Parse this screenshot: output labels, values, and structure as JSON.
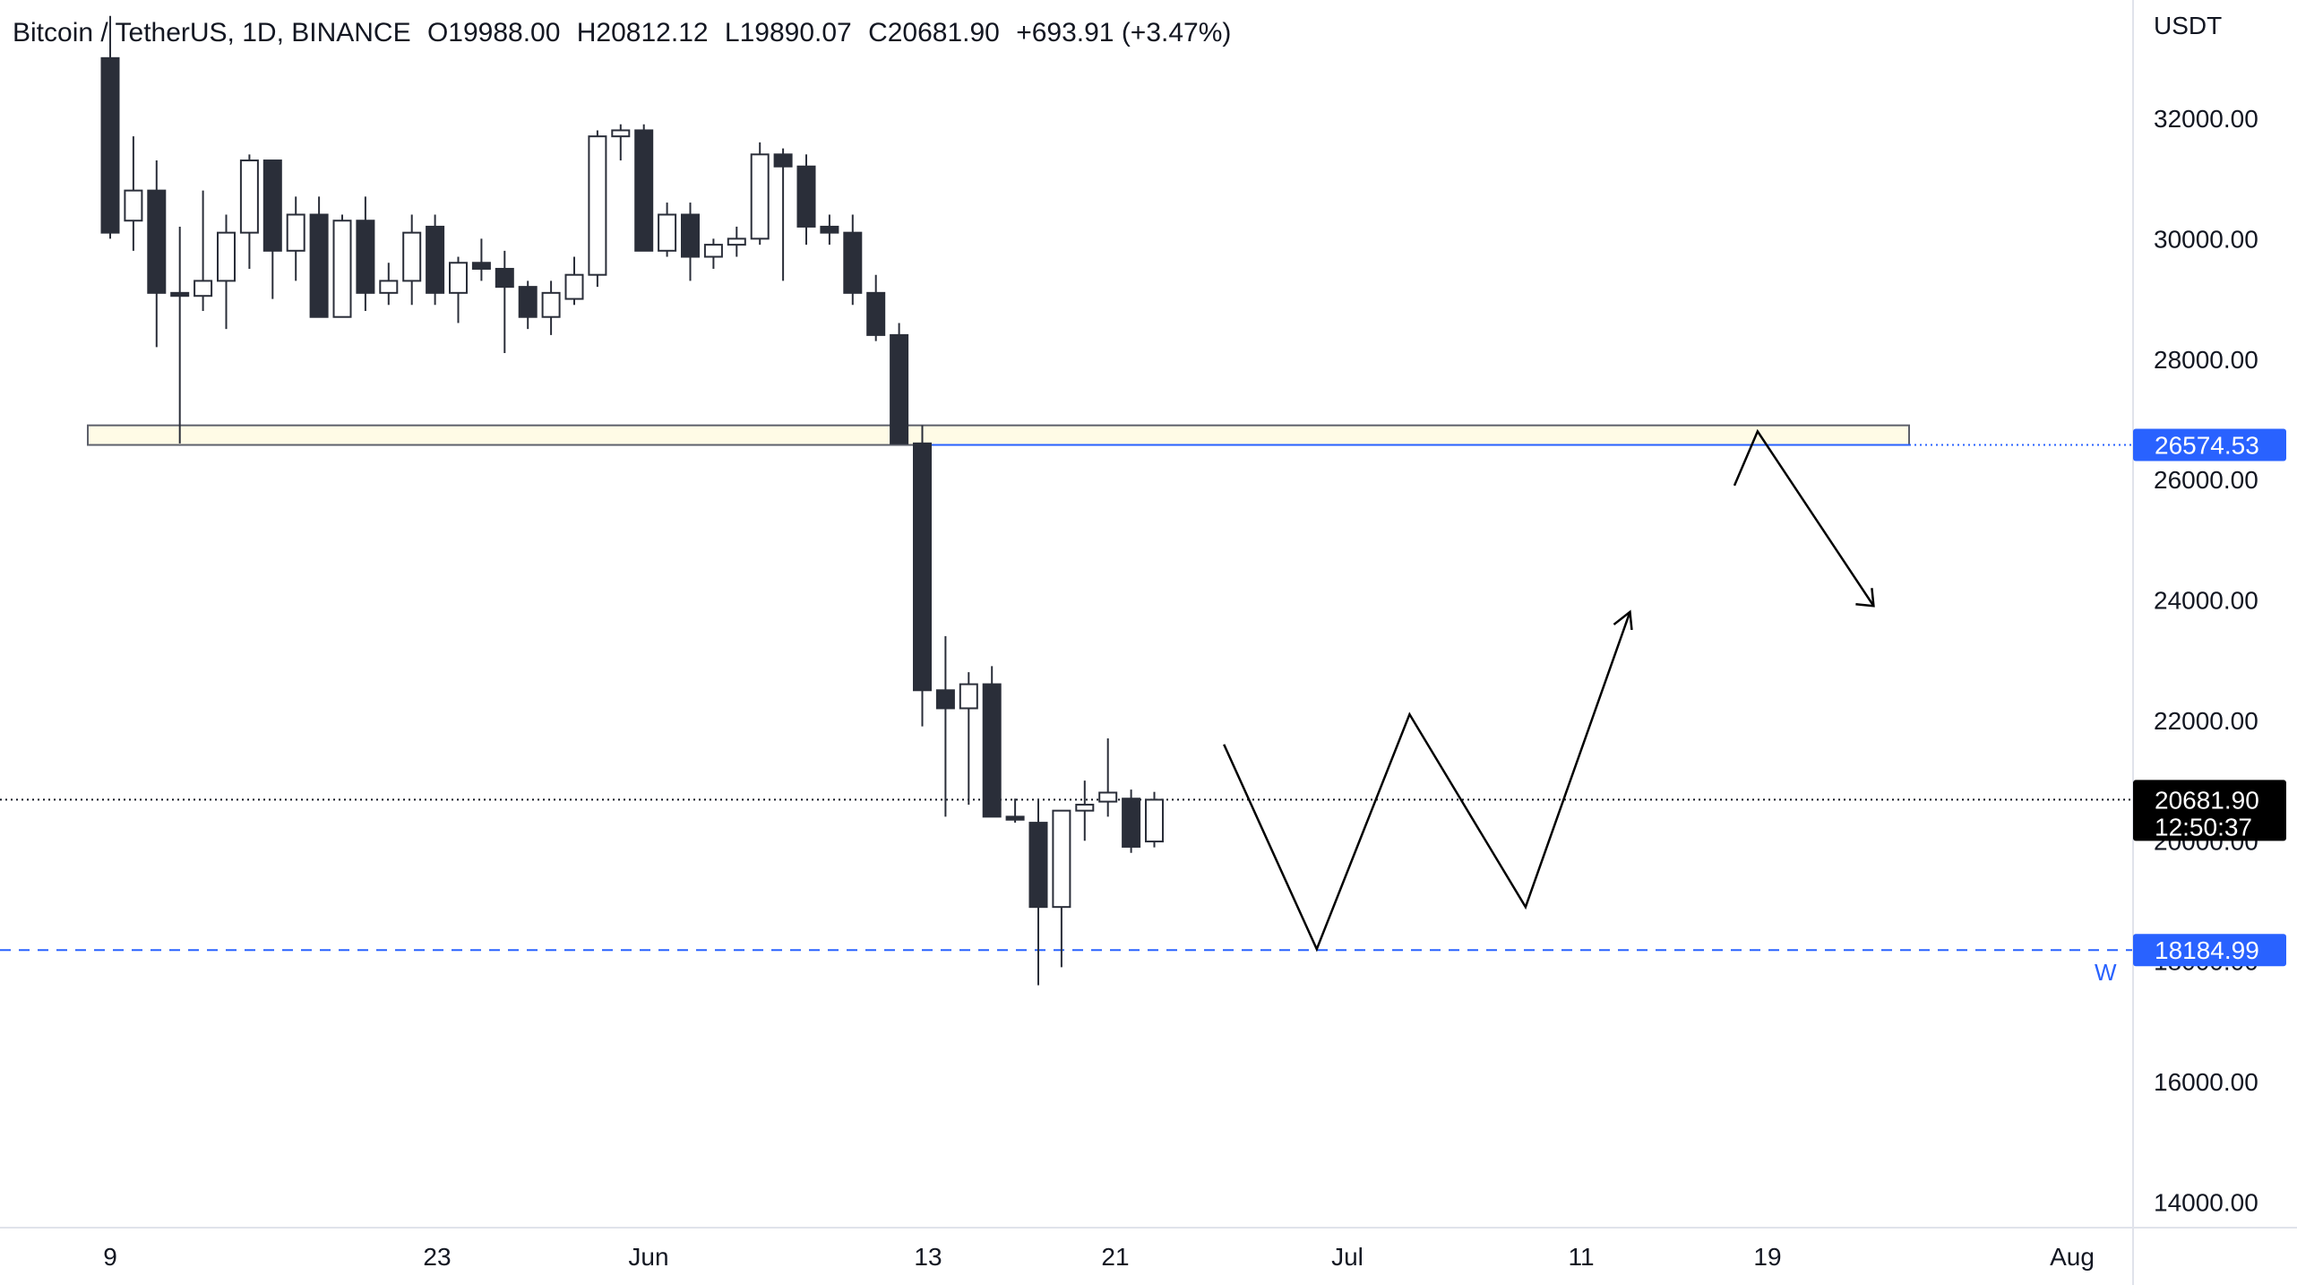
{
  "legend": {
    "symbol": "Bitcoin / TetherUS, 1D, BINANCE",
    "open": "O19988.00",
    "high": "H20812.12",
    "low": "L19890.07",
    "close": "C20681.90",
    "change": "+693.91 (+3.47%)"
  },
  "axis": {
    "unit_label": "USDT",
    "y_ticks": [
      "14000.00",
      "16000.00",
      "18000.00",
      "20000.00",
      "22000.00",
      "24000.00",
      "26000.00",
      "28000.00",
      "30000.00",
      "32000.00"
    ],
    "x_ticks": [
      "9",
      "23",
      "Jun",
      "13",
      "21",
      "Jul",
      "11",
      "19",
      "Aug"
    ]
  },
  "tags": {
    "resistance": "26574.53",
    "last_price": "20681.90",
    "countdown": "12:50:37",
    "support": "18184.99",
    "support_marker": "W"
  },
  "colors": {
    "down_candle": "#2a2e39",
    "up_candle_fill": "#ffffff",
    "accent_blue": "#2962ff",
    "zone_fill": "#fffbe6",
    "zone_border": "#5d606b",
    "last_price_bg": "#000000"
  },
  "chart_data": {
    "type": "candlestick",
    "interval": "1D",
    "ylim": [
      13500,
      33500
    ],
    "candles": [
      {
        "o": 33000,
        "h": 33700,
        "l": 30000,
        "c": 30100,
        "d": "down"
      },
      {
        "o": 30300,
        "h": 31700,
        "l": 29800,
        "c": 30800,
        "d": "up"
      },
      {
        "o": 30800,
        "h": 31300,
        "l": 28200,
        "c": 29100,
        "d": "down"
      },
      {
        "o": 29050,
        "h": 30200,
        "l": 26600,
        "c": 29100,
        "d": "down"
      },
      {
        "o": 29050,
        "h": 30800,
        "l": 28800,
        "c": 29300,
        "d": "up"
      },
      {
        "o": 29300,
        "h": 30400,
        "l": 28500,
        "c": 30100,
        "d": "up"
      },
      {
        "o": 30100,
        "h": 31400,
        "l": 29500,
        "c": 31300,
        "d": "up"
      },
      {
        "o": 31300,
        "h": 31300,
        "l": 29000,
        "c": 29800,
        "d": "down"
      },
      {
        "o": 29800,
        "h": 30700,
        "l": 29300,
        "c": 30400,
        "d": "up"
      },
      {
        "o": 30400,
        "h": 30700,
        "l": 28700,
        "c": 28700,
        "d": "down"
      },
      {
        "o": 28700,
        "h": 30400,
        "l": 28700,
        "c": 30300,
        "d": "up"
      },
      {
        "o": 30300,
        "h": 30700,
        "l": 28800,
        "c": 29100,
        "d": "down"
      },
      {
        "o": 29100,
        "h": 29600,
        "l": 28900,
        "c": 29300,
        "d": "up"
      },
      {
        "o": 29300,
        "h": 30400,
        "l": 28900,
        "c": 30100,
        "d": "up"
      },
      {
        "o": 30200,
        "h": 30400,
        "l": 28900,
        "c": 29100,
        "d": "down"
      },
      {
        "o": 29100,
        "h": 29700,
        "l": 28600,
        "c": 29600,
        "d": "up"
      },
      {
        "o": 29600,
        "h": 30000,
        "l": 29300,
        "c": 29500,
        "d": "down"
      },
      {
        "o": 29500,
        "h": 29800,
        "l": 28100,
        "c": 29200,
        "d": "down"
      },
      {
        "o": 29200,
        "h": 29300,
        "l": 28500,
        "c": 28700,
        "d": "down"
      },
      {
        "o": 28700,
        "h": 29300,
        "l": 28400,
        "c": 29100,
        "d": "up"
      },
      {
        "o": 29000,
        "h": 29700,
        "l": 28900,
        "c": 29400,
        "d": "up"
      },
      {
        "o": 29400,
        "h": 31800,
        "l": 29200,
        "c": 31700,
        "d": "up"
      },
      {
        "o": 31700,
        "h": 31900,
        "l": 31300,
        "c": 31800,
        "d": "up"
      },
      {
        "o": 31800,
        "h": 31900,
        "l": 29800,
        "c": 29800,
        "d": "down"
      },
      {
        "o": 29800,
        "h": 30600,
        "l": 29700,
        "c": 30400,
        "d": "up"
      },
      {
        "o": 30400,
        "h": 30600,
        "l": 29300,
        "c": 29700,
        "d": "down"
      },
      {
        "o": 29700,
        "h": 30000,
        "l": 29500,
        "c": 29900,
        "d": "up"
      },
      {
        "o": 29900,
        "h": 30200,
        "l": 29700,
        "c": 30000,
        "d": "up"
      },
      {
        "o": 30000,
        "h": 31600,
        "l": 29900,
        "c": 31400,
        "d": "up"
      },
      {
        "o": 31400,
        "h": 31500,
        "l": 29300,
        "c": 31200,
        "d": "down"
      },
      {
        "o": 31200,
        "h": 31400,
        "l": 29900,
        "c": 30200,
        "d": "down"
      },
      {
        "o": 30200,
        "h": 30400,
        "l": 29900,
        "c": 30100,
        "d": "down"
      },
      {
        "o": 30100,
        "h": 30400,
        "l": 28900,
        "c": 29100,
        "d": "down"
      },
      {
        "o": 29100,
        "h": 29400,
        "l": 28300,
        "c": 28400,
        "d": "down"
      },
      {
        "o": 28400,
        "h": 28600,
        "l": 26600,
        "c": 26600,
        "d": "down"
      },
      {
        "o": 26600,
        "h": 26900,
        "l": 21900,
        "c": 22500,
        "d": "down"
      },
      {
        "o": 22500,
        "h": 23400,
        "l": 20400,
        "c": 22200,
        "d": "down"
      },
      {
        "o": 22200,
        "h": 22800,
        "l": 20600,
        "c": 22600,
        "d": "up"
      },
      {
        "o": 22600,
        "h": 22900,
        "l": 20500,
        "c": 20400,
        "d": "down"
      },
      {
        "o": 20400,
        "h": 20700,
        "l": 20300,
        "c": 20350,
        "d": "down"
      },
      {
        "o": 20300,
        "h": 20700,
        "l": 17600,
        "c": 18900,
        "d": "down"
      },
      {
        "o": 18900,
        "h": 20500,
        "l": 17900,
        "c": 20500,
        "d": "up"
      },
      {
        "o": 20500,
        "h": 21000,
        "l": 20000,
        "c": 20600,
        "d": "up"
      },
      {
        "o": 20650,
        "h": 21700,
        "l": 20400,
        "c": 20800,
        "d": "up"
      },
      {
        "o": 20700,
        "h": 20850,
        "l": 19800,
        "c": 19900,
        "d": "down"
      },
      {
        "o": 19988,
        "h": 20812.12,
        "l": 19890.07,
        "c": 20681.9,
        "d": "up"
      }
    ],
    "levels": {
      "resistance_zone": [
        26574.53,
        26900
      ],
      "last_price": 20681.9,
      "support": 18184.99
    },
    "projection_path": [
      {
        "i": 48,
        "p": 21600
      },
      {
        "i": 52,
        "p": 18200
      },
      {
        "i": 56,
        "p": 22100
      },
      {
        "i": 61,
        "p": 18900
      },
      {
        "i": 65.5,
        "p": 23800
      }
    ],
    "projection_arrow_2": [
      {
        "i": 70,
        "p": 25900
      },
      {
        "i": 71,
        "p": 26800
      },
      {
        "i": 76,
        "p": 23900
      }
    ]
  }
}
